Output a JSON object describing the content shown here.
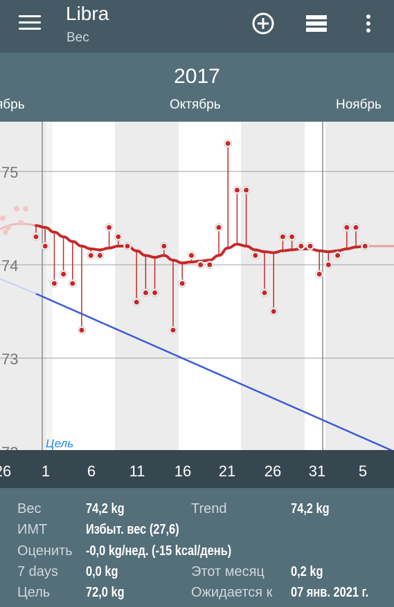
{
  "app": {
    "title": "Libra",
    "subtitle": "Вес"
  },
  "header": {
    "year": "2017",
    "months": [
      "ябрь",
      "Октябрь",
      "Ноябрь"
    ]
  },
  "chart_data": {
    "type": "line",
    "ylim": [
      72,
      75.6
    ],
    "yticks": [
      "75",
      "74",
      "73",
      "72"
    ],
    "x_labels": [
      "26",
      "1",
      "6",
      "11",
      "16",
      "21",
      "26",
      "31",
      "5"
    ],
    "goal_label": "Цель",
    "calendar_day": "6",
    "series": [
      {
        "values": [
          74.3,
          74.2,
          73.8,
          73.9,
          73.8,
          73.3,
          74.1,
          74.1,
          74.4,
          74.3,
          74.2,
          73.6,
          73.7,
          73.7,
          74.2,
          73.3,
          73.8,
          74.1,
          74.0,
          74.0,
          74.4,
          75.3,
          74.8,
          74.8,
          74.1,
          73.7,
          73.5,
          74.3,
          74.3,
          74.2,
          74.2,
          73.9,
          74.0,
          74.1,
          74.4,
          74.4,
          74.2
        ]
      },
      {
        "values": [
          74.42,
          74.4,
          74.35,
          74.3,
          74.25,
          74.2,
          74.17,
          74.16,
          74.18,
          74.2,
          74.2,
          74.15,
          74.1,
          74.08,
          74.1,
          74.05,
          74.02,
          74.03,
          74.04,
          74.05,
          74.1,
          74.18,
          74.22,
          74.2,
          74.16,
          74.14,
          74.13,
          74.15,
          74.16,
          74.17,
          74.17,
          74.15,
          74.14,
          74.15,
          74.17,
          74.19,
          74.2
        ]
      }
    ],
    "colors": {
      "weight": "#c62828",
      "trend": "#c62828",
      "goal": "#3b5bdb"
    }
  },
  "stats": {
    "weight_label": "Вес",
    "weight_value": "74,2 kg",
    "trend_label": "Trend",
    "trend_value": "74,2 kg",
    "bmi_label": "ИМТ",
    "bmi_value": "Избыт. вес (27,6)",
    "rate_label": "Оценить",
    "rate_value": "-0,0 kg/нед. (-15 kcal/день)",
    "days7_label": "7 days",
    "days7_value": "0,0 kg",
    "month_label": "Этот месяц",
    "month_value": "0,2 kg",
    "goal_label": "Цель",
    "goal_value": "72,0 kg",
    "expected_label": "Ожидается к",
    "expected_value": "07 янв. 2021 г."
  }
}
